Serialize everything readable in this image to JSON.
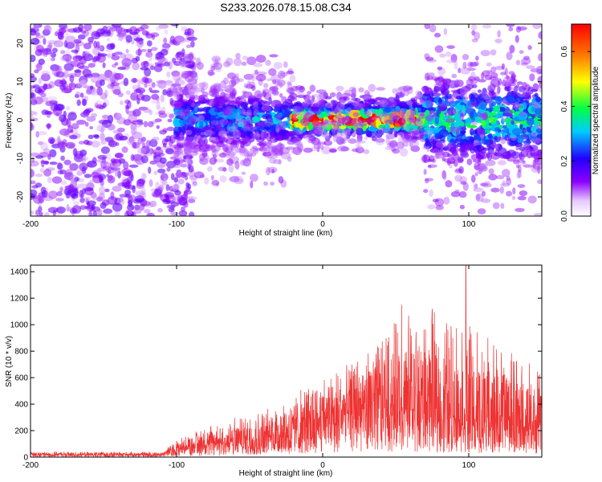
{
  "title": "S233.2026.078.15.08.C34",
  "chart_data": [
    {
      "type": "heatmap",
      "title": "S233.2026.078.15.08.C34",
      "xlabel": "Height of straight line (km)",
      "ylabel": "Frequency (Hz)",
      "xlim": [
        -200,
        150
      ],
      "ylim": [
        -25,
        25
      ],
      "xticks": [
        -200,
        -100,
        0,
        100
      ],
      "xtick_labels": [
        "-200",
        "-100",
        "0",
        "100"
      ],
      "yticks": [
        -20,
        -10,
        0,
        10,
        20
      ],
      "ytick_labels": [
        "-20",
        "-10",
        "0",
        "10",
        "20"
      ],
      "colorbar": {
        "label": "Normalized spectral amplitude",
        "range": [
          0,
          0.7
        ],
        "ticks": [
          0.0,
          0.2,
          0.4,
          0.6
        ],
        "tick_labels": [
          "0.0",
          "0.2",
          "0.4",
          "0.6"
        ],
        "colormap": [
          "#ffffff",
          "#8a00ff",
          "#2200ff",
          "#00ccff",
          "#00ff44",
          "#ffff00",
          "#ff7700",
          "#ff0000"
        ]
      },
      "description_regions": [
        {
          "x_range": [
            -200,
            -100
          ],
          "freq_range": [
            -25,
            25
          ],
          "amplitude": 0.08
        },
        {
          "x_range": [
            -100,
            -20
          ],
          "freq_range": [
            -8,
            8
          ],
          "amplitude": 0.2
        },
        {
          "x_range": [
            -20,
            70
          ],
          "freq_range": [
            -4,
            4
          ],
          "amplitude": 0.5
        },
        {
          "x_range": [
            70,
            150
          ],
          "freq_range": [
            -12,
            12
          ],
          "amplitude": 0.25
        }
      ]
    },
    {
      "type": "line",
      "title": "",
      "xlabel": "Height of straight line (km)",
      "ylabel": "SNR (10 * v/v)",
      "xlim": [
        -200,
        150
      ],
      "ylim": [
        0,
        1450
      ],
      "xticks": [
        -200,
        -100,
        0,
        100
      ],
      "xtick_labels": [
        "-200",
        "-100",
        "0",
        "100"
      ],
      "yticks": [
        0,
        200,
        400,
        600,
        800,
        1000,
        1200,
        1400
      ],
      "ytick_labels": [
        "0",
        "200",
        "400",
        "600",
        "800",
        "1000",
        "1200",
        "1400"
      ],
      "color": "#ee3333",
      "envelope": [
        {
          "x": -200,
          "base": 20,
          "peak": 40
        },
        {
          "x": -110,
          "base": 20,
          "peak": 40
        },
        {
          "x": -100,
          "base": 60,
          "peak": 130
        },
        {
          "x": -80,
          "base": 100,
          "peak": 240
        },
        {
          "x": -60,
          "base": 120,
          "peak": 300
        },
        {
          "x": -40,
          "base": 150,
          "peak": 350
        },
        {
          "x": -20,
          "base": 200,
          "peak": 480
        },
        {
          "x": 0,
          "base": 280,
          "peak": 600
        },
        {
          "x": 20,
          "base": 350,
          "peak": 720
        },
        {
          "x": 40,
          "base": 420,
          "peak": 900
        },
        {
          "x": 55,
          "base": 380,
          "peak": 1100
        },
        {
          "x": 75,
          "base": 350,
          "peak": 1100
        },
        {
          "x": 100,
          "base": 300,
          "peak": 1000
        },
        {
          "x": 120,
          "base": 280,
          "peak": 850
        },
        {
          "x": 150,
          "base": 250,
          "peak": 700
        }
      ],
      "annotated_peaks": [
        {
          "x": 98,
          "y": 1450
        },
        {
          "x": 54,
          "y": 1150
        },
        {
          "x": 75,
          "y": 1120
        }
      ]
    }
  ]
}
